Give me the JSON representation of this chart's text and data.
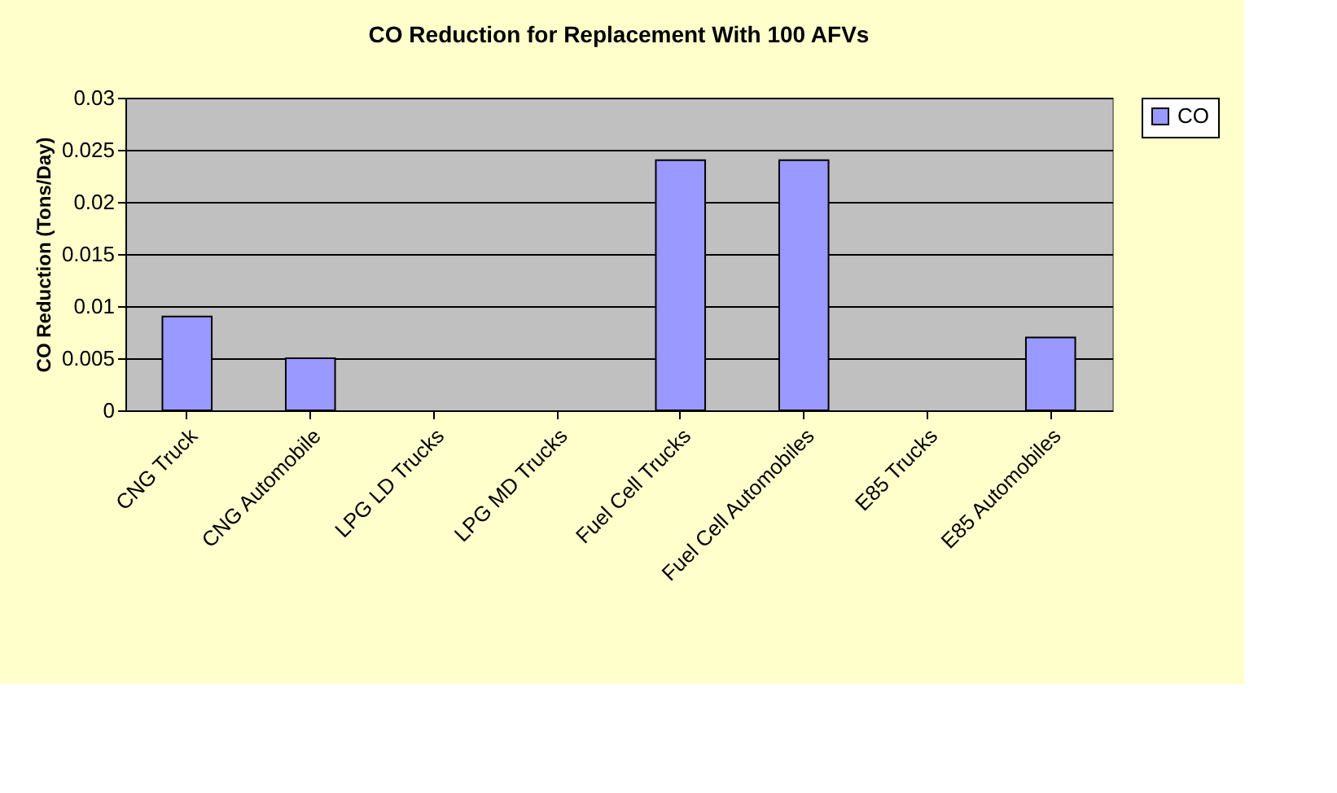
{
  "chart_data": {
    "type": "bar",
    "title": "CO Reduction for Replacement With 100 AFVs",
    "ylabel": "CO Reduction (Tons/Day)",
    "categories": [
      "CNG Truck",
      "CNG Automobile",
      "LPG LD Trucks",
      "LPG MD Trucks",
      "Fuel Cell Trucks",
      "Fuel Cell Automobiles",
      "E85 Trucks",
      "E85 Automobiles"
    ],
    "series": [
      {
        "name": "CO",
        "color": "#9999ff",
        "values": [
          0.009,
          0.005,
          0,
          0,
          0.024,
          0.024,
          0,
          0.007
        ]
      }
    ],
    "ylim": [
      0,
      0.03
    ],
    "yticks": [
      0,
      0.005,
      0.01,
      0.015,
      0.02,
      0.025,
      0.03
    ],
    "grid": "y",
    "legend": "right"
  }
}
